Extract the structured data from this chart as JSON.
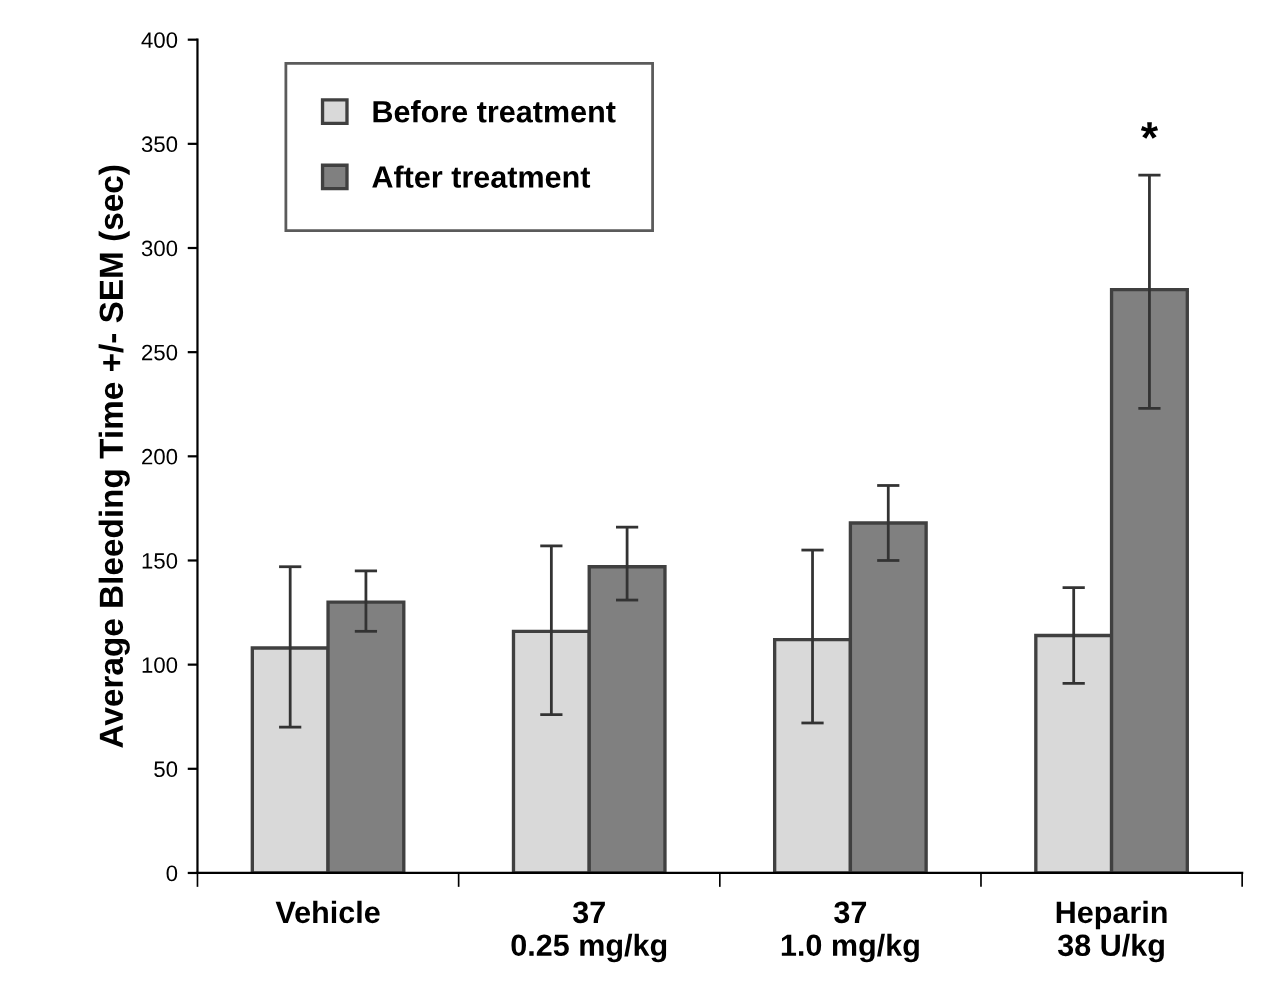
{
  "chart_data": {
    "type": "bar",
    "ylabel": "Average Bleeding Time +/- SEM (sec)",
    "categories": [
      "Vehicle",
      "37\n0.25 mg/kg",
      "37\n1.0 mg/kg",
      "Heparin\n38 U/kg"
    ],
    "series": [
      {
        "name": "Before treatment",
        "color": "#d9d9d9",
        "values": [
          108,
          116,
          112,
          114
        ],
        "errors": [
          [
            70,
            147
          ],
          [
            76,
            157
          ],
          [
            72,
            155
          ],
          [
            91,
            137
          ]
        ]
      },
      {
        "name": "After treatment",
        "color": "#808080",
        "values": [
          130,
          147,
          168,
          280
        ],
        "errors": [
          [
            116,
            145
          ],
          [
            131,
            166
          ],
          [
            150,
            186
          ],
          [
            223,
            335
          ]
        ]
      }
    ],
    "ylim": [
      0,
      400
    ],
    "yticks": [
      0,
      50,
      100,
      150,
      200,
      250,
      300,
      350,
      400
    ],
    "annotations": [
      "*"
    ],
    "legend": "top left",
    "grid": false
  }
}
